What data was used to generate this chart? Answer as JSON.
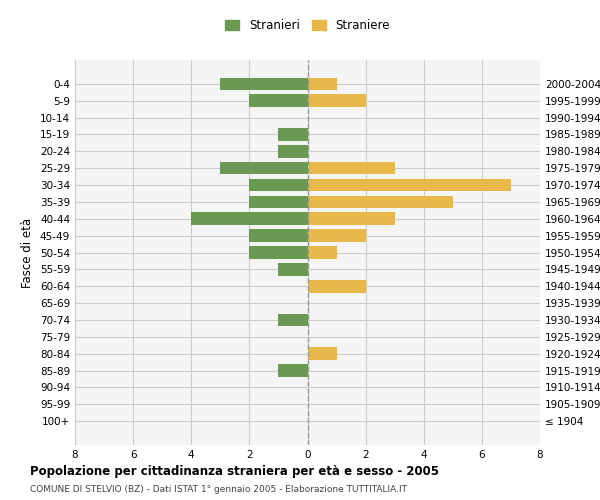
{
  "age_groups": [
    "100+",
    "95-99",
    "90-94",
    "85-89",
    "80-84",
    "75-79",
    "70-74",
    "65-69",
    "60-64",
    "55-59",
    "50-54",
    "45-49",
    "40-44",
    "35-39",
    "30-34",
    "25-29",
    "20-24",
    "15-19",
    "10-14",
    "5-9",
    "0-4"
  ],
  "birth_years": [
    "≤ 1904",
    "1905-1909",
    "1910-1914",
    "1915-1919",
    "1920-1924",
    "1925-1929",
    "1930-1934",
    "1935-1939",
    "1940-1944",
    "1945-1949",
    "1950-1954",
    "1955-1959",
    "1960-1964",
    "1965-1969",
    "1970-1974",
    "1975-1979",
    "1980-1984",
    "1985-1989",
    "1990-1994",
    "1995-1999",
    "2000-2004"
  ],
  "males": [
    0,
    0,
    0,
    1,
    0,
    0,
    1,
    0,
    0,
    1,
    2,
    2,
    4,
    2,
    2,
    3,
    1,
    1,
    0,
    2,
    3
  ],
  "females": [
    0,
    0,
    0,
    0,
    1,
    0,
    0,
    0,
    2,
    0,
    1,
    2,
    3,
    5,
    7,
    3,
    0,
    0,
    0,
    2,
    1
  ],
  "male_color": "#6a9a52",
  "female_color": "#e8b84b",
  "grid_color": "#cccccc",
  "center_line_color": "#999999",
  "title": "Popolazione per cittadinanza straniera per età e sesso - 2005",
  "subtitle": "COMUNE DI STELVIO (BZ) - Dati ISTAT 1° gennaio 2005 - Elaborazione TUTTITALIA.IT",
  "ylabel_left": "Fasce di età",
  "legend_male": "Stranieri",
  "legend_female": "Straniere",
  "xlim": 8,
  "background_color": "#ffffff",
  "plot_bg_color": "#f5f5f5"
}
